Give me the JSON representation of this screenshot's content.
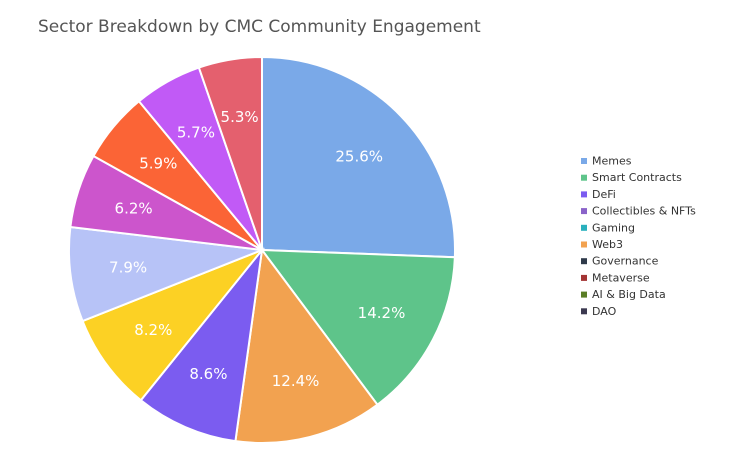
{
  "chart_data": {
    "type": "pie",
    "title": "Sector Breakdown by CMC Community Engagement",
    "legend_position": "right",
    "start_angle": "12 o'clock, clockwise",
    "slices": [
      {
        "name": "Memes",
        "value": 25.6,
        "label": "25.6%",
        "color": "#7aa9e8"
      },
      {
        "name": "Smart Contracts",
        "value": 14.2,
        "label": "14.2%",
        "color": "#5ec48a"
      },
      {
        "name": "Web3",
        "value": 12.4,
        "label": "12.4%",
        "color": "#f2a250"
      },
      {
        "name": "",
        "value": 8.6,
        "label": "8.6%",
        "color": "#7b5cf0"
      },
      {
        "name": "",
        "value": 8.2,
        "label": "8.2%",
        "color": "#fcd124"
      },
      {
        "name": "",
        "value": 7.9,
        "label": "7.9%",
        "color": "#b7c3f7"
      },
      {
        "name": "",
        "value": 6.2,
        "label": "6.2%",
        "color": "#cc55cc"
      },
      {
        "name": "",
        "value": 5.9,
        "label": "5.9%",
        "color": "#fb6436"
      },
      {
        "name": "",
        "value": 5.7,
        "label": "5.7%",
        "color": "#c15af6"
      },
      {
        "name": "",
        "value": 5.3,
        "label": "5.3%",
        "color": "#e4606e"
      }
    ],
    "legend": [
      {
        "label": "Memes",
        "color": "#7aa9e8"
      },
      {
        "label": "Smart Contracts",
        "color": "#5ec48a"
      },
      {
        "label": "DeFi",
        "color": "#7b5cf0"
      },
      {
        "label": "Collectibles & NFTs",
        "color": "#8a63c9"
      },
      {
        "label": "Gaming",
        "color": "#2ab0bd"
      },
      {
        "label": "Web3",
        "color": "#f2a250"
      },
      {
        "label": "Governance",
        "color": "#2f3a4a"
      },
      {
        "label": "Metaverse",
        "color": "#a33434"
      },
      {
        "label": "AI & Big Data",
        "color": "#5a7d26"
      },
      {
        "label": "DAO",
        "color": "#3b3950"
      }
    ]
  }
}
